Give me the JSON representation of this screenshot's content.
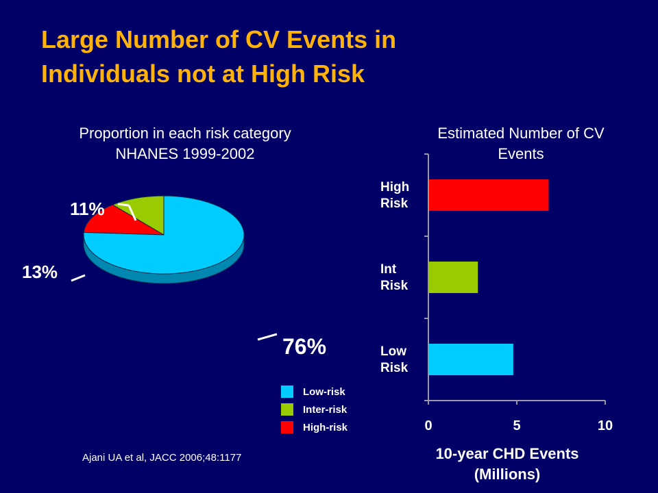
{
  "title": {
    "line1": "Large Number of CV Events in",
    "line2": "Individuals not at High Risk"
  },
  "colors": {
    "background": "#000066",
    "title": "#ffb20a",
    "low": "#00ccff",
    "inter": "#99cc00",
    "high": "#ff0000"
  },
  "citation": "Ajani UA et al, JACC 2006;48:1177",
  "chart_data": [
    {
      "type": "pie",
      "title_lines": [
        "Proportion in each risk category",
        "NHANES 1999-2002"
      ],
      "slices": [
        {
          "label": "Low-risk",
          "value": 76,
          "display": "76%",
          "color": "#00ccff"
        },
        {
          "label": "Inter-risk",
          "value": 11,
          "display": "11%",
          "color": "#99cc00"
        },
        {
          "label": "High-risk",
          "value": 13,
          "display": "13%",
          "color": "#ff0000"
        }
      ],
      "legend": [
        "Low-risk",
        "Inter-risk",
        "High-risk"
      ]
    },
    {
      "type": "bar",
      "orientation": "horizontal",
      "title_lines": [
        "Estimated Number of CV",
        "Events"
      ],
      "categories": [
        [
          "High",
          "Risk"
        ],
        [
          "Int",
          "Risk"
        ],
        [
          "Low",
          "Risk"
        ]
      ],
      "values": [
        6.8,
        2.8,
        4.8
      ],
      "colors": [
        "#ff0000",
        "#99cc00",
        "#00ccff"
      ],
      "xlim": [
        0,
        10
      ],
      "xticks": [
        "0",
        "5",
        "10"
      ],
      "xlabel_lines": [
        "10-year CHD Events",
        "(Millions)"
      ]
    }
  ]
}
